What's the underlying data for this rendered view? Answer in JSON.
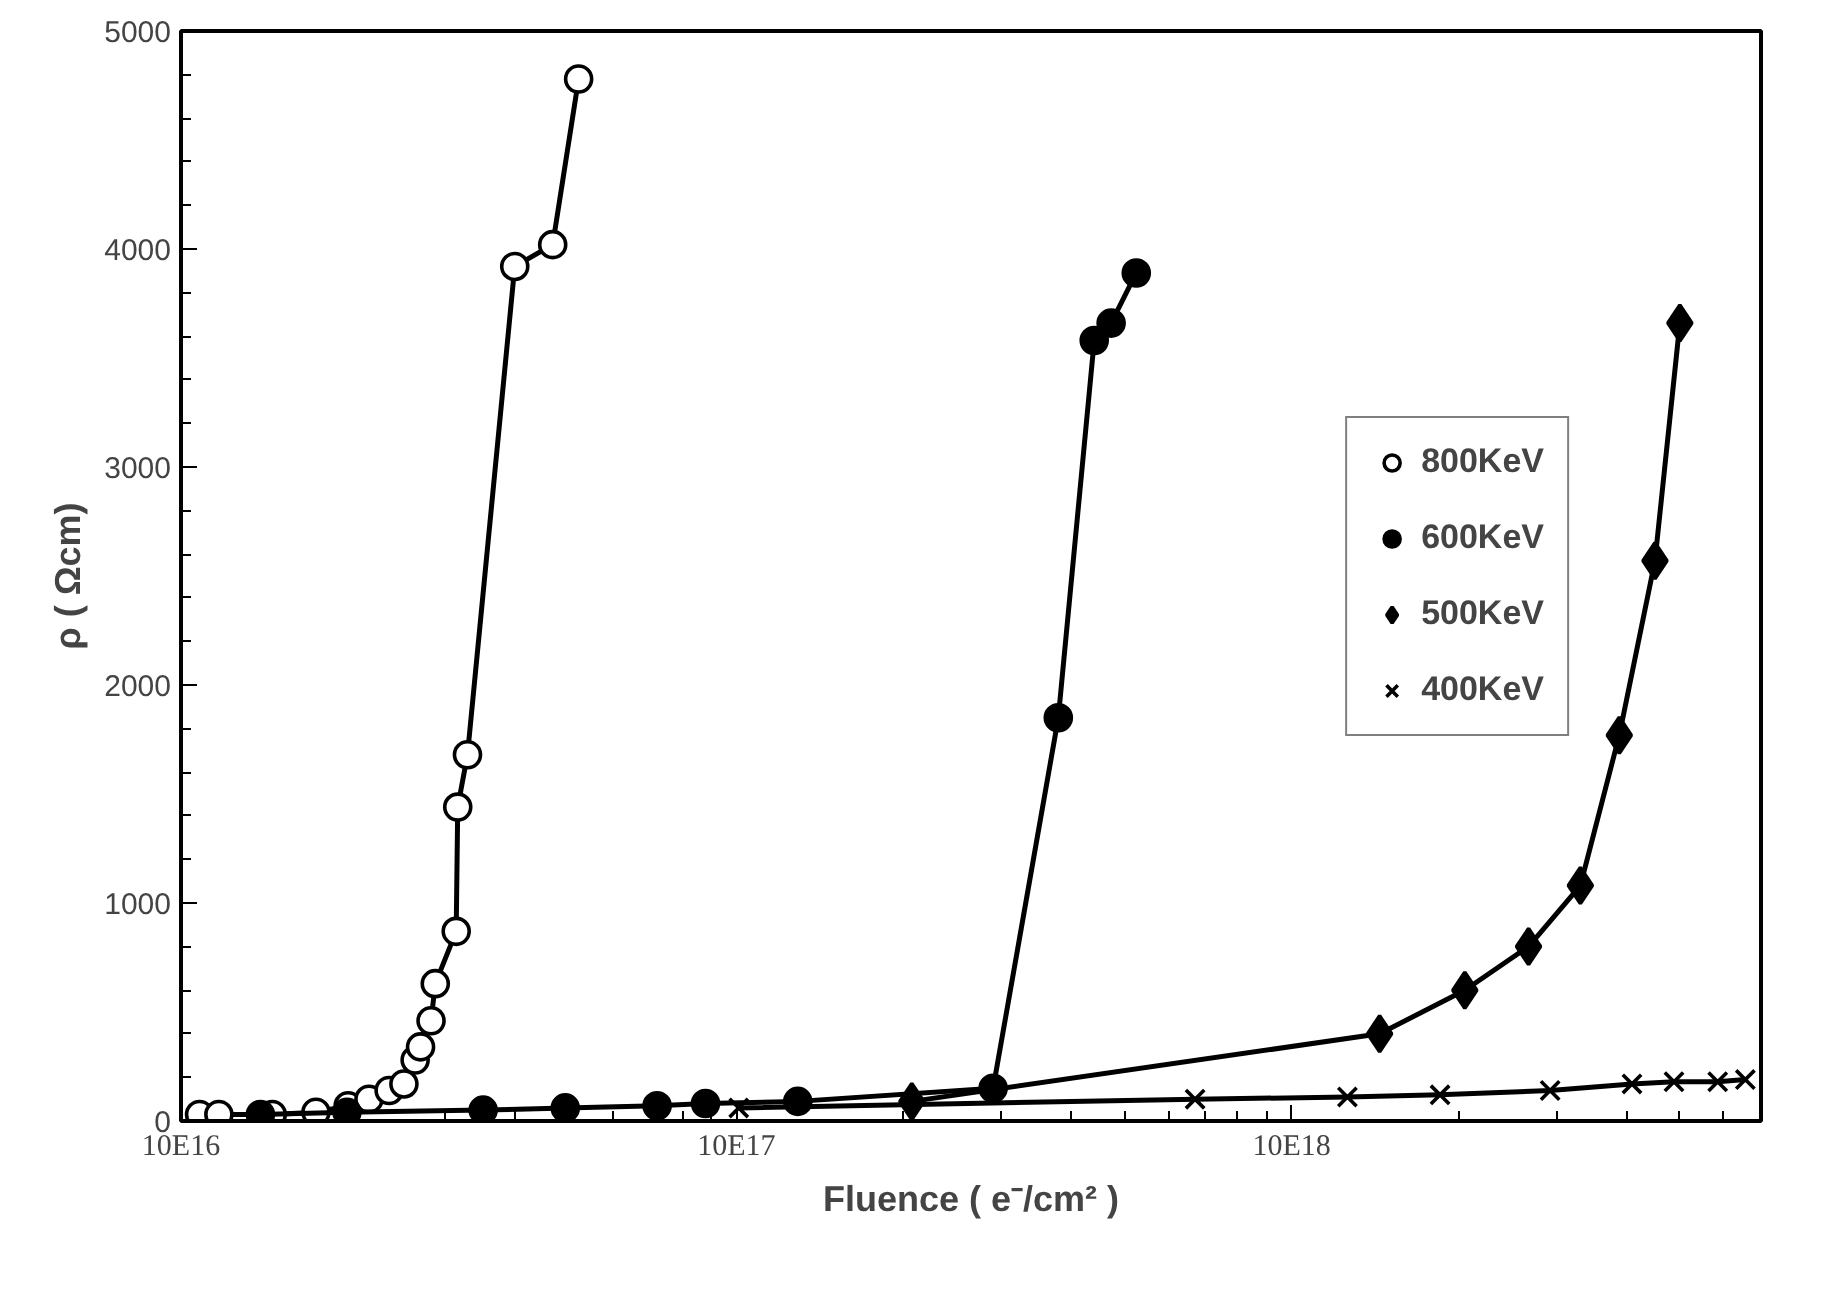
{
  "chart_data": {
    "type": "line",
    "xlabel": "Fluence ( e⁻/cm² )",
    "ylabel": "ρ ( Ωcm)",
    "log": "x",
    "xlim": [
      1e+17,
      7e+19
    ],
    "ylim": [
      0,
      5000
    ],
    "xticks": [
      {
        "value": 1e+17,
        "label": "10E16"
      },
      {
        "value": 1e+18,
        "label": "10E17"
      },
      {
        "value": 1e+19,
        "label": "10E18"
      }
    ],
    "yticks": [
      0,
      1000,
      2000,
      3000,
      4000,
      5000
    ],
    "grid": false,
    "legend": "right",
    "series": [
      {
        "name": "800KeV",
        "color": "#000000",
        "marker": "circle",
        "colors": [
          "#ffffff",
          "#ffffff",
          "#ffffff",
          "#ffffff",
          "#ffffff",
          "#ffffff",
          "#ffffff",
          "#ffffff",
          "#ffffff",
          "#ffffff",
          "#ffffff",
          "#ffffff",
          "#ffffff",
          "#ffffff",
          "#ffffff",
          "#ffffff",
          "#ffffff",
          "#ffffff"
        ],
        "x": [
          1.08e+17,
          1.17e+17,
          1.46e+17,
          1.75e+17,
          2e+17,
          2.18e+17,
          2.37e+17,
          2.52e+17,
          2.64e+17,
          2.7e+17,
          2.82e+17,
          2.87e+17,
          3.13e+17,
          3.15e+17,
          3.28e+17,
          3.99e+17,
          4.67e+17,
          5.2e+17
        ],
        "values": [
          30,
          30,
          30,
          40,
          70,
          100,
          140,
          170,
          280,
          340,
          460,
          630,
          870,
          1440,
          1680,
          3920,
          4020,
          4780
        ]
      },
      {
        "name": "600KeV",
        "color": "#000000",
        "marker": "circle",
        "x": [
          1.39e+17,
          1.99e+17,
          3.5e+17,
          4.92e+17,
          7.2e+17,
          8.8e+17,
          1.29e+18,
          2.9e+18,
          3.8e+18,
          4.41e+18,
          4.73e+18,
          5.25e+18
        ],
        "values": [
          30,
          40,
          50,
          60,
          70,
          80,
          90,
          150,
          1850,
          3580,
          3660,
          3890
        ]
      },
      {
        "name": "500KeV",
        "color": "#000000",
        "marker": "diamond",
        "x": [
          2.07e+18,
          1.44e+19,
          2.05e+19,
          2.67e+19,
          3.31e+19,
          3.89e+19,
          4.51e+19,
          5e+19
        ],
        "values": [
          90,
          400,
          600,
          800,
          1080,
          1770,
          2570,
          3660
        ]
      },
      {
        "name": "400KeV",
        "color": "#000000",
        "marker": "cross",
        "x": [
          1.01e+18,
          6.7e+18,
          1.26e+19,
          1.85e+19,
          2.92e+19,
          4.1e+19,
          4.88e+19,
          5.85e+19,
          6.56e+19
        ],
        "values": [
          60,
          100,
          110,
          120,
          140,
          170,
          180,
          180,
          190
        ]
      }
    ]
  }
}
